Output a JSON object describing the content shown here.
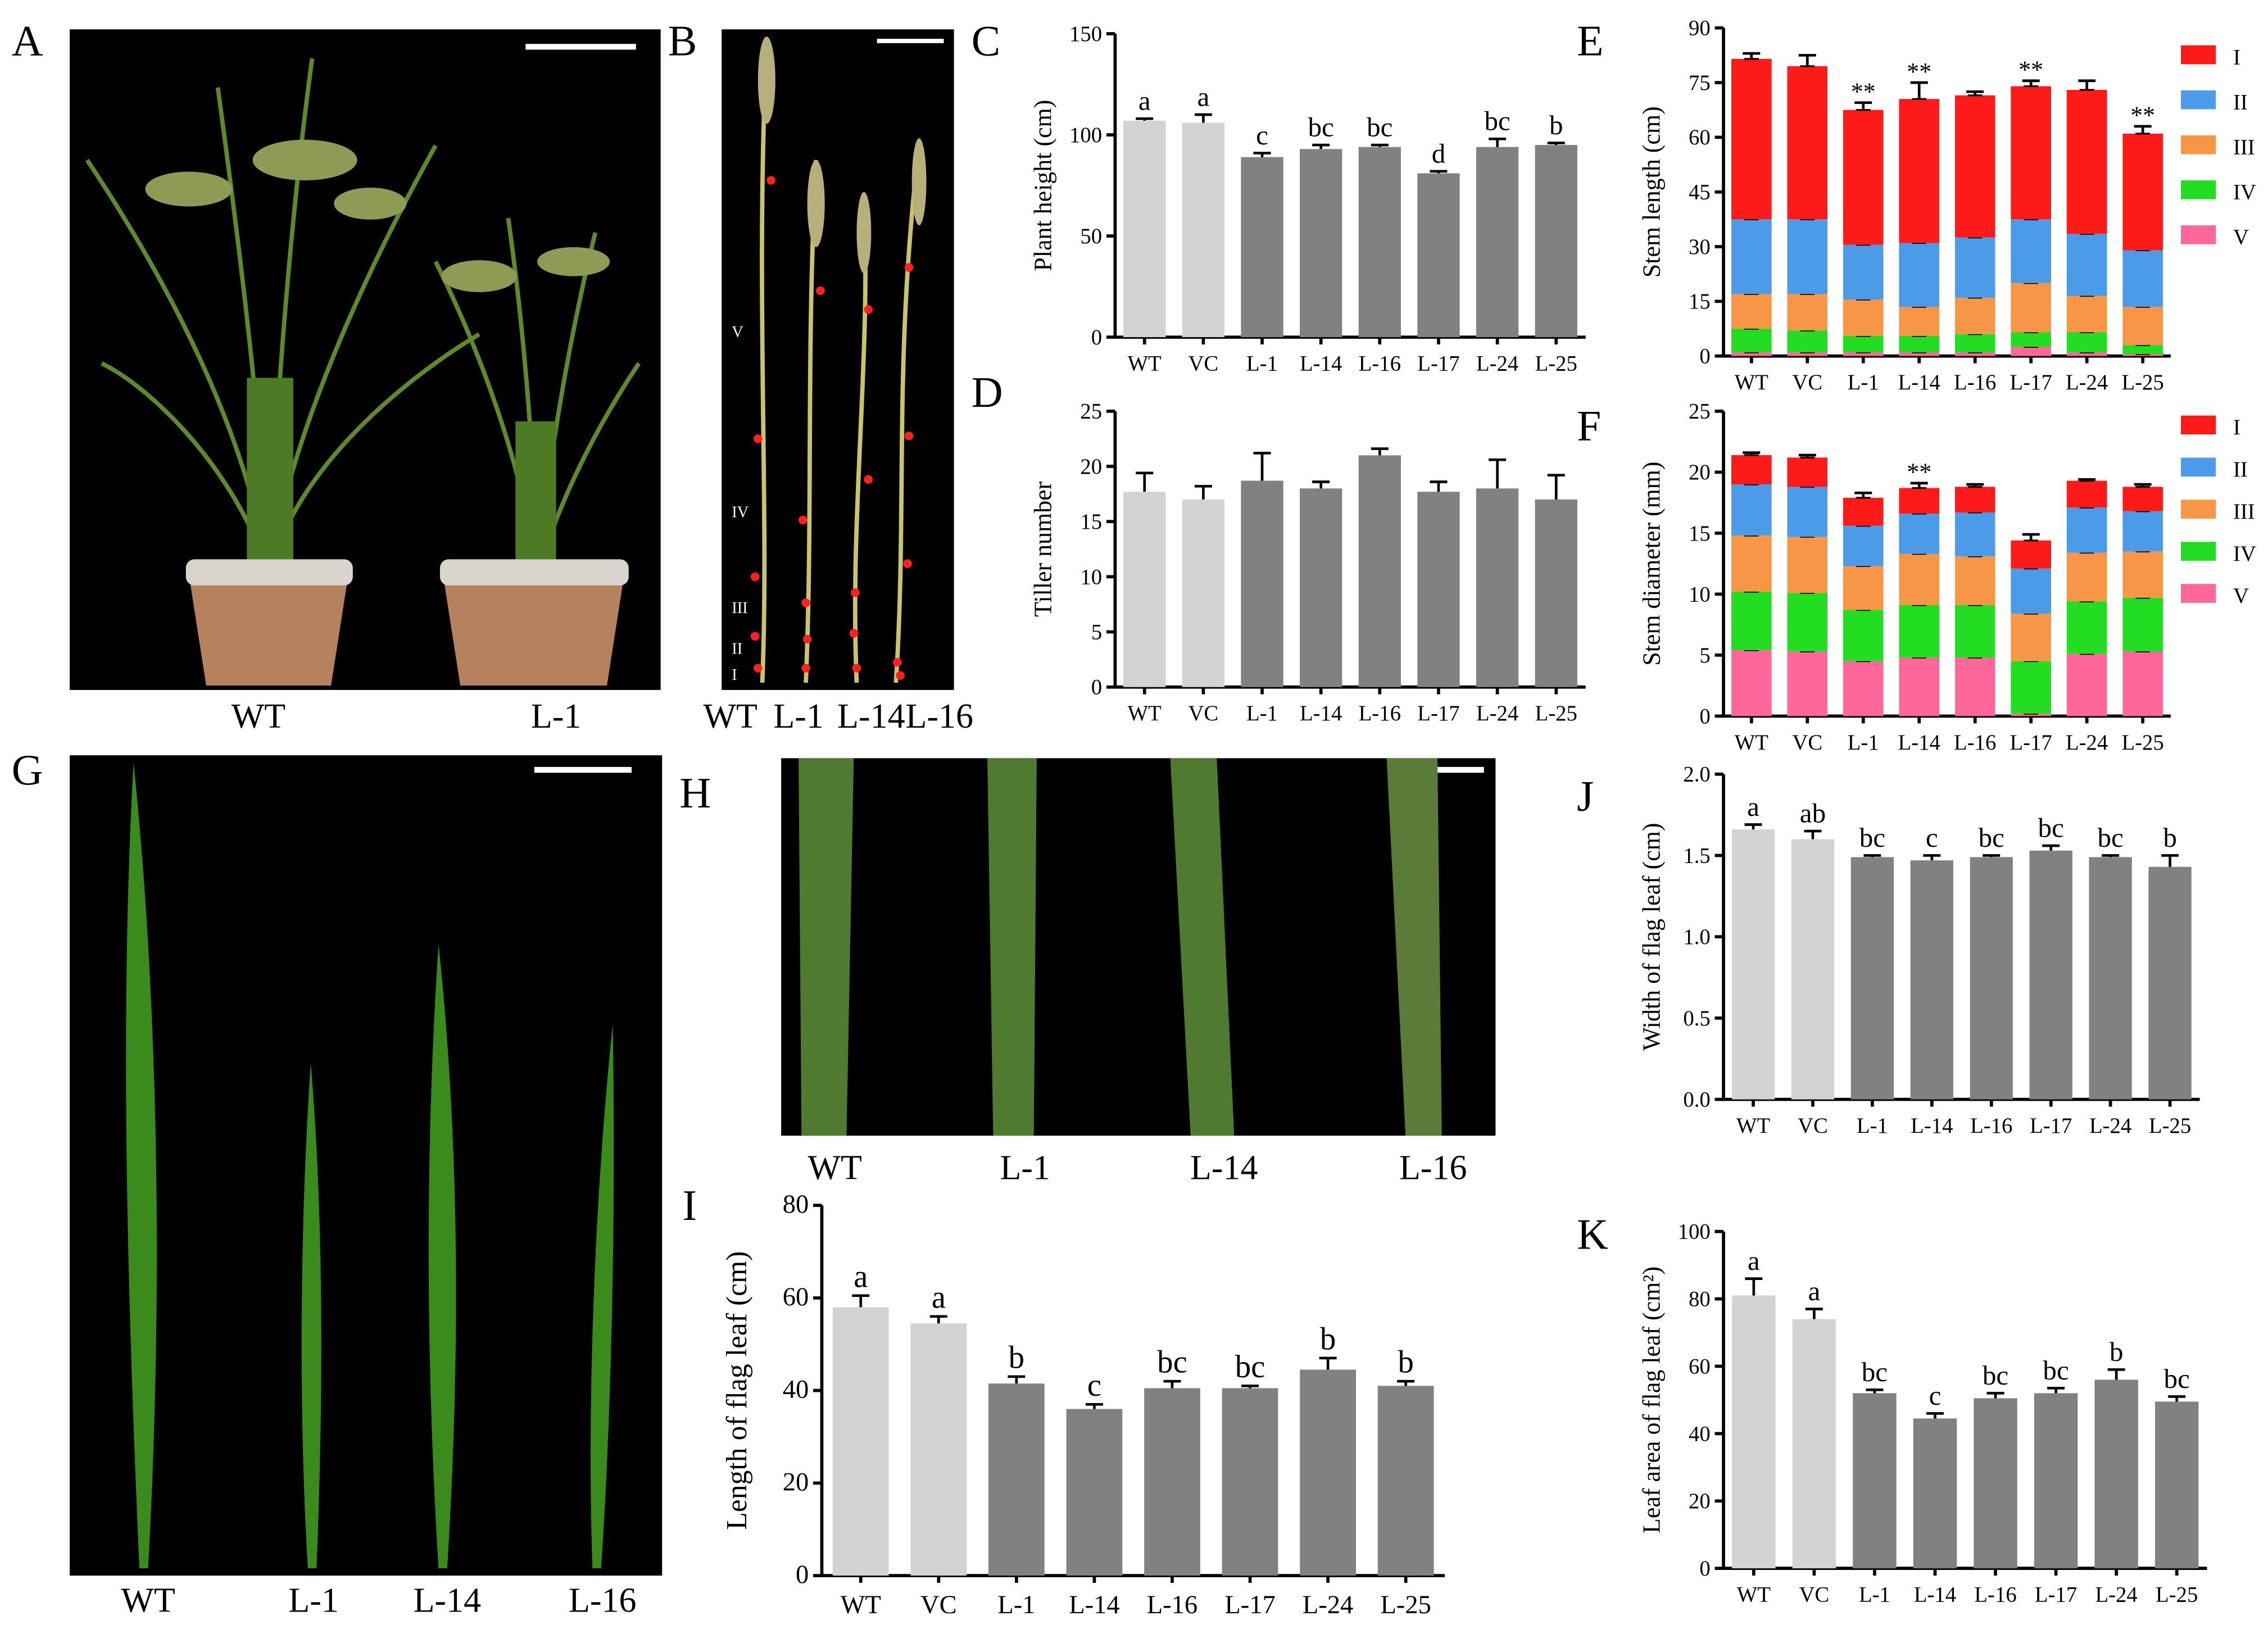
{
  "figure": {
    "panel_letters": [
      "A",
      "B",
      "C",
      "D",
      "E",
      "F",
      "G",
      "H",
      "I",
      "J",
      "K"
    ],
    "photos": {
      "A": {
        "labels": [
          "WT",
          "L-1"
        ]
      },
      "B": {
        "labels": [
          "WT",
          "L-1",
          "L-14",
          "L-16"
        ],
        "internodes": [
          "V",
          "IV",
          "III",
          "II",
          "I"
        ]
      },
      "G": {
        "labels": [
          "WT",
          "L-1",
          "L-14",
          "L-16"
        ]
      },
      "H": {
        "labels": [
          "WT",
          "L-1",
          "L-14",
          "L-16"
        ]
      }
    }
  },
  "colors": {
    "wt_bar": "#d3d3d3",
    "line_bar": "#818181",
    "I": "#ff1a1a",
    "II": "#4c9be8",
    "III": "#f79646",
    "IV": "#22dd22",
    "V": "#ff6699"
  },
  "chart_data": [
    {
      "id": "C",
      "type": "bar",
      "categories": [
        "WT",
        "VC",
        "L-1",
        "L-14",
        "L-16",
        "L-17",
        "L-24",
        "L-25"
      ],
      "values": [
        107,
        106,
        89,
        93,
        94,
        81,
        94,
        95
      ],
      "errors": [
        1,
        4,
        2,
        2,
        1,
        1,
        4,
        1
      ],
      "letters": [
        "a",
        "a",
        "c",
        "bc",
        "bc",
        "d",
        "bc",
        "b"
      ],
      "ylabel": "Plant height (cm)",
      "ylim": [
        0,
        150
      ],
      "yticks": [
        0,
        50,
        100,
        150
      ]
    },
    {
      "id": "D",
      "type": "bar",
      "categories": [
        "WT",
        "VC",
        "L-1",
        "L-14",
        "L-16",
        "L-17",
        "L-24",
        "L-25"
      ],
      "values": [
        17.7,
        17.0,
        18.7,
        18.0,
        21.0,
        17.7,
        18.0,
        17.0
      ],
      "errors": [
        1.7,
        1.2,
        2.5,
        0.6,
        0.6,
        0.9,
        2.6,
        2.2
      ],
      "ylabel": "Tiller number",
      "ylim": [
        0,
        25
      ],
      "yticks": [
        0,
        5,
        10,
        15,
        20,
        25
      ]
    },
    {
      "id": "E",
      "type": "bar",
      "stacked": true,
      "categories": [
        "WT",
        "VC",
        "L-1",
        "L-14",
        "L-16",
        "L-17",
        "L-24",
        "L-25"
      ],
      "series": [
        {
          "name": "V",
          "values": [
            1,
            1,
            1,
            1,
            1,
            2.5,
            1,
            0.5
          ]
        },
        {
          "name": "IV",
          "values": [
            6.5,
            6,
            4.5,
            4.5,
            5,
            4,
            5.5,
            2.5
          ]
        },
        {
          "name": "III",
          "values": [
            9.5,
            10,
            10,
            8,
            10,
            13.5,
            10,
            10.5
          ]
        },
        {
          "name": "II",
          "values": [
            20.5,
            20.5,
            15,
            17.5,
            16.5,
            17.5,
            17,
            15.5
          ]
        },
        {
          "name": "I",
          "values": [
            44,
            42,
            37,
            39.5,
            39,
            36.5,
            39.5,
            32
          ]
        }
      ],
      "errors": [
        1.5,
        3,
        2,
        4.5,
        1,
        1.5,
        2.5,
        2
      ],
      "top_stars": [
        "",
        "",
        "**",
        "**",
        "",
        "**",
        "",
        "**"
      ],
      "ylabel": "Stem length (cm)",
      "ylim": [
        0,
        90
      ],
      "yticks": [
        0,
        15,
        30,
        45,
        60,
        75,
        90
      ],
      "legend": [
        "I",
        "II",
        "III",
        "IV",
        "V"
      ]
    },
    {
      "id": "F",
      "type": "bar",
      "stacked": true,
      "categories": [
        "WT",
        "VC",
        "L-1",
        "L-14",
        "L-16",
        "L-17",
        "L-24",
        "L-25"
      ],
      "series": [
        {
          "name": "V",
          "values": [
            5.4,
            5.3,
            4.5,
            4.8,
            4.8,
            0.2,
            5.1,
            5.3
          ]
        },
        {
          "name": "IV",
          "values": [
            4.8,
            4.8,
            4.2,
            4.3,
            4.3,
            4.3,
            4.3,
            4.4
          ]
        },
        {
          "name": "III",
          "values": [
            4.6,
            4.6,
            3.6,
            4.2,
            4.0,
            3.9,
            4.0,
            3.8
          ]
        },
        {
          "name": "II",
          "values": [
            4.2,
            4.1,
            3.3,
            3.3,
            3.6,
            3.7,
            3.7,
            3.3
          ]
        },
        {
          "name": "I",
          "values": [
            2.4,
            2.4,
            2.3,
            2.1,
            2.1,
            2.3,
            2.2,
            2.0
          ]
        }
      ],
      "errors": [
        0.2,
        0.2,
        0.4,
        0.4,
        0.2,
        0.5,
        0.1,
        0.2
      ],
      "top_stars": [
        "",
        "",
        "",
        "**",
        "",
        "",
        "",
        ""
      ],
      "ylabel": "Stem diameter (mm)",
      "ylim": [
        0,
        25
      ],
      "yticks": [
        0,
        5,
        10,
        15,
        20,
        25
      ],
      "legend": [
        "I",
        "II",
        "III",
        "IV",
        "V"
      ]
    },
    {
      "id": "I",
      "type": "bar",
      "categories": [
        "WT",
        "VC",
        "L-1",
        "L-14",
        "L-16",
        "L-17",
        "L-24",
        "L-25"
      ],
      "values": [
        58,
        54.5,
        41.5,
        36,
        40.5,
        40.5,
        44.5,
        41
      ],
      "errors": [
        2.5,
        1.5,
        1.5,
        1,
        1.5,
        0.5,
        2.5,
        1
      ],
      "letters": [
        "a",
        "a",
        "b",
        "c",
        "bc",
        "bc",
        "b",
        "b"
      ],
      "ylabel": "Length of flag leaf (cm)",
      "ylim": [
        0,
        80
      ],
      "yticks": [
        0,
        20,
        40,
        60,
        80
      ]
    },
    {
      "id": "J",
      "type": "bar",
      "categories": [
        "WT",
        "VC",
        "L-1",
        "L-14",
        "L-16",
        "L-17",
        "L-24",
        "L-25"
      ],
      "values": [
        1.66,
        1.6,
        1.49,
        1.47,
        1.49,
        1.53,
        1.49,
        1.43
      ],
      "errors": [
        0.03,
        0.05,
        0.01,
        0.03,
        0.01,
        0.03,
        0.01,
        0.07
      ],
      "letters": [
        "a",
        "ab",
        "bc",
        "c",
        "bc",
        "bc",
        "bc",
        "b"
      ],
      "ylabel": "Width of flag leaf (cm)",
      "ylim": [
        0,
        2.0
      ],
      "yticks": [
        0,
        0.5,
        1.0,
        1.5,
        2.0
      ],
      "ytick_labels": [
        "0.0",
        "0.5",
        "1.0",
        "1.5",
        "2.0"
      ]
    },
    {
      "id": "K",
      "type": "bar",
      "categories": [
        "WT",
        "VC",
        "L-1",
        "L-14",
        "L-16",
        "L-17",
        "L-24",
        "L-25"
      ],
      "values": [
        81,
        74,
        52,
        44.5,
        50.5,
        52,
        56,
        49.5
      ],
      "errors": [
        5,
        3,
        1,
        1.5,
        1.5,
        1.5,
        3,
        1.5
      ],
      "letters": [
        "a",
        "a",
        "bc",
        "c",
        "bc",
        "bc",
        "b",
        "bc"
      ],
      "ylabel": "Leaf area of flag leaf (cm²)",
      "ylim": [
        0,
        100
      ],
      "yticks": [
        0,
        20,
        40,
        60,
        80,
        100
      ]
    }
  ]
}
